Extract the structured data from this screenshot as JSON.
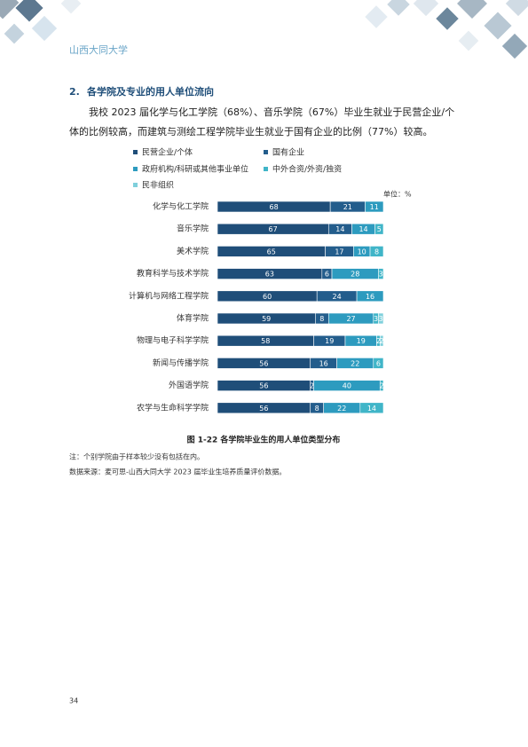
{
  "header": {
    "title": "山西大同大学"
  },
  "section": {
    "number": "2.",
    "title": "各学院及专业的用人单位流向"
  },
  "paragraph": "我校 2023 届化学与化工学院（68%）、音乐学院（67%）毕业生就业于民营企业/个体的比例较高，而建筑与测绘工程学院毕业生就业于国有企业的比例（77%）较高。",
  "chart_data": {
    "type": "stacked-bar-horizontal",
    "unit_label": "单位：%",
    "categories": [
      "化学与化工学院",
      "音乐学院",
      "美术学院",
      "教育科学与技术学院",
      "计算机与网络工程学院",
      "体育学院",
      "物理与电子科学学院",
      "新闻与传播学院",
      "外国语学院",
      "农学与生命科学学院"
    ],
    "xlim": [
      0,
      100
    ],
    "series": [
      {
        "name": "民营企业/个体",
        "color": "#1f4e79",
        "values": [
          68,
          67,
          65,
          63,
          60,
          59,
          58,
          56,
          56,
          56
        ]
      },
      {
        "name": "国有企业",
        "color": "#235d8c",
        "values": [
          21,
          14,
          17,
          6,
          24,
          8,
          19,
          16,
          2,
          8
        ]
      },
      {
        "name": "政府机构/科研或其他事业单位",
        "color": "#2d9bbf",
        "values": [
          11,
          14,
          10,
          28,
          16,
          27,
          19,
          22,
          40,
          22
        ]
      },
      {
        "name": "中外合资/外资/独资",
        "color": "#40b5c8",
        "values": [
          null,
          5,
          8,
          3,
          null,
          3,
          2,
          6,
          2,
          14
        ]
      },
      {
        "name": "民非组织",
        "color": "#7fd0dc",
        "values": [
          null,
          null,
          null,
          null,
          null,
          3,
          2,
          null,
          null,
          null
        ]
      }
    ]
  },
  "caption": "图 1-22    各学院毕业生的用人单位类型分布",
  "note": "注：个别学院由于样本较少没有包括在内。",
  "source": "数据来源：麦可思-山西大同大学 2023 届毕业生培养质量评价数据。",
  "page_number": "34"
}
